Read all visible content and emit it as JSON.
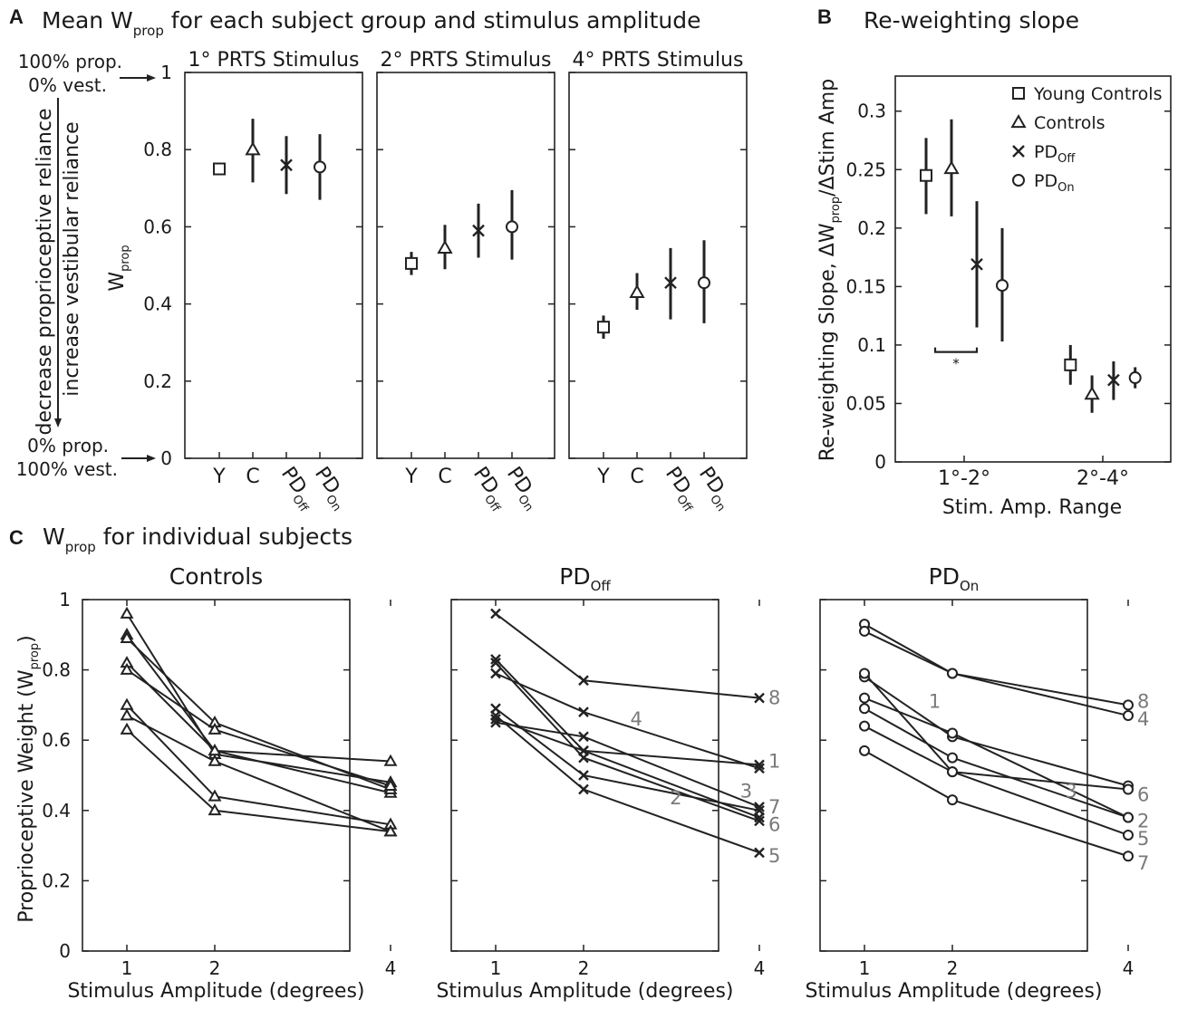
{
  "panelA": {
    "label": "A",
    "title_pre": "Mean W",
    "title_sub": "prop",
    "title_post": " for each subject group and stimulus amplitude",
    "ylabel_main": "W",
    "ylabel_sub": "prop",
    "side_label_1": "decrease proprioceptive reliance",
    "side_label_2": "increase vestibular reliance",
    "top_note_line1": "100% prop.",
    "top_note_line2": "0% vest.",
    "bottom_note_line1": "0% prop.",
    "bottom_note_line2": "100% vest.",
    "arrow_glyph": "→",
    "y_ticks": [
      "0",
      "0.2",
      "0.4",
      "0.6",
      "0.8",
      "1"
    ]
  },
  "panelB": {
    "label": "B",
    "title": "Re-weighting slope",
    "ylabel_parts": [
      "Re-weighting Slope, ΔW",
      "prop",
      "/ΔStim Amp"
    ],
    "xlabel": "Stim. Amp. Range",
    "y_ticks": [
      "0",
      "0.05",
      "0.1",
      "0.15",
      "0.2",
      "0.25",
      "0.3"
    ],
    "sig_mark": "*",
    "legend": [
      {
        "marker": "square",
        "main": "Young Controls",
        "sub": ""
      },
      {
        "marker": "triangle",
        "main": "Controls",
        "sub": ""
      },
      {
        "marker": "x",
        "main": "PD",
        "sub": "Off"
      },
      {
        "marker": "circle",
        "main": "PD",
        "sub": "On"
      }
    ]
  },
  "panelC": {
    "label": "C",
    "title_pre": "W",
    "title_sub": "prop",
    "title_post": " for individual subjects",
    "ylabel_pre": "Proprioceptive Weight (W",
    "ylabel_sub": "prop",
    "ylabel_post": ")",
    "xlabel": "Stimulus Amplitude (degrees)",
    "y_ticks": [
      "0",
      "0.2",
      "0.4",
      "0.6",
      "0.8",
      "1"
    ],
    "x_ticks": [
      "1",
      "2",
      "4"
    ]
  },
  "chart_data": [
    {
      "type": "scatter",
      "id": "A",
      "ylabel": "Wprop",
      "ylim": [
        0,
        1
      ],
      "groups": [
        {
          "main": "Y",
          "sub": ""
        },
        {
          "main": "C",
          "sub": ""
        },
        {
          "main": "PD",
          "sub": "Off"
        },
        {
          "main": "PD",
          "sub": "On"
        }
      ],
      "markers": [
        "square",
        "triangle",
        "x",
        "circle"
      ],
      "panels": [
        {
          "title": "1° PRTS Stimulus",
          "values": [
            0.75,
            0.8,
            0.76,
            0.755
          ],
          "ci_low": [
            0.75,
            0.715,
            0.685,
            0.67
          ],
          "ci_high": [
            0.75,
            0.88,
            0.835,
            0.84
          ]
        },
        {
          "title": "2° PRTS Stimulus",
          "values": [
            0.505,
            0.545,
            0.59,
            0.6
          ],
          "ci_low": [
            0.475,
            0.49,
            0.52,
            0.515
          ],
          "ci_high": [
            0.535,
            0.605,
            0.66,
            0.695
          ]
        },
        {
          "title": "4° PRTS Stimulus",
          "values": [
            0.34,
            0.43,
            0.455,
            0.455
          ],
          "ci_low": [
            0.31,
            0.385,
            0.36,
            0.35
          ],
          "ci_high": [
            0.37,
            0.48,
            0.545,
            0.565
          ]
        }
      ]
    },
    {
      "type": "scatter",
      "id": "B",
      "categories": [
        "1°-2°",
        "2°-4°"
      ],
      "ylim": [
        0,
        0.33
      ],
      "series": [
        {
          "name": "Young Controls",
          "marker": "square",
          "values": [
            0.245,
            0.083
          ],
          "ci_low": [
            0.212,
            0.066
          ],
          "ci_high": [
            0.277,
            0.1
          ]
        },
        {
          "name": "Controls",
          "marker": "triangle",
          "values": [
            0.251,
            0.058
          ],
          "ci_low": [
            0.21,
            0.042
          ],
          "ci_high": [
            0.293,
            0.074
          ]
        },
        {
          "name": "PDOff",
          "marker": "x",
          "values": [
            0.169,
            0.07
          ],
          "ci_low": [
            0.115,
            0.053
          ],
          "ci_high": [
            0.223,
            0.086
          ]
        },
        {
          "name": "PDOn",
          "marker": "circle",
          "values": [
            0.151,
            0.072
          ],
          "ci_low": [
            0.103,
            0.063
          ],
          "ci_high": [
            0.2,
            0.081
          ]
        }
      ],
      "significance": {
        "between": [
          "Young Controls",
          "PDOff"
        ],
        "range": "1°-2°",
        "mark": "*"
      }
    },
    {
      "type": "line",
      "id": "C",
      "x": [
        1,
        2,
        4
      ],
      "ylim": [
        0,
        1
      ],
      "xlabel": "Stimulus Amplitude (degrees)",
      "ylabel": "Proprioceptive Weight (Wprop)",
      "panels": [
        {
          "title_main": "Controls",
          "title_sub": "",
          "marker": "triangle",
          "subjects": [
            {
              "values": [
                0.96,
                0.56,
                0.48
              ]
            },
            {
              "values": [
                0.9,
                0.57,
                0.45
              ]
            },
            {
              "values": [
                0.89,
                0.65,
                0.46
              ]
            },
            {
              "values": [
                0.82,
                0.57,
                0.54
              ]
            },
            {
              "values": [
                0.8,
                0.63,
                0.47
              ]
            },
            {
              "values": [
                0.7,
                0.44,
                0.36
              ]
            },
            {
              "values": [
                0.67,
                0.54,
                0.34
              ]
            },
            {
              "values": [
                0.63,
                0.4,
                0.34
              ]
            }
          ]
        },
        {
          "title_main": "PD",
          "title_sub": "Off",
          "marker": "x",
          "subjects": [
            {
              "id": "8",
              "values": [
                0.96,
                0.77,
                0.72
              ]
            },
            {
              "id": "1",
              "values": [
                0.83,
                0.57,
                0.53
              ]
            },
            {
              "id": "4",
              "values": [
                0.79,
                0.68,
                0.52
              ]
            },
            {
              "id": "6",
              "values": [
                0.82,
                0.55,
                0.37
              ]
            },
            {
              "id": "3",
              "values": [
                0.69,
                0.5,
                0.4
              ]
            },
            {
              "id": "7",
              "values": [
                0.65,
                0.61,
                0.41
              ]
            },
            {
              "id": "2",
              "values": [
                0.66,
                0.57,
                0.38
              ]
            },
            {
              "id": "5",
              "values": [
                0.67,
                0.46,
                0.28
              ]
            }
          ],
          "labels": [
            {
              "text": "8",
              "x": 4,
              "y": 0.72,
              "side": "right"
            },
            {
              "text": "1",
              "x": 4,
              "y": 0.54,
              "side": "right"
            },
            {
              "text": "7",
              "x": 4,
              "y": 0.41,
              "side": "right"
            },
            {
              "text": "6",
              "x": 4,
              "y": 0.36,
              "side": "right"
            },
            {
              "text": "5",
              "x": 4,
              "y": 0.27,
              "side": "right"
            },
            {
              "text": "4",
              "x": 2.6,
              "y": 0.66,
              "side": "inline"
            },
            {
              "text": "3",
              "x": 3.85,
              "y": 0.455,
              "side": "inline"
            },
            {
              "text": "2",
              "x": 3.05,
              "y": 0.435,
              "side": "inline"
            }
          ]
        },
        {
          "title_main": "PD",
          "title_sub": "On",
          "marker": "circle",
          "subjects": [
            {
              "id": "8",
              "values": [
                0.93,
                0.79,
                0.7
              ]
            },
            {
              "id": "4",
              "values": [
                0.91,
                0.79,
                0.67
              ]
            },
            {
              "id": "1",
              "values": [
                0.78,
                0.61,
                0.47
              ]
            },
            {
              "id": "6",
              "values": [
                0.79,
                0.51,
                0.46
              ]
            },
            {
              "id": "3",
              "values": [
                0.72,
                0.62,
                0.38
              ]
            },
            {
              "id": "2",
              "values": [
                0.69,
                0.55,
                0.38
              ]
            },
            {
              "id": "5",
              "values": [
                0.64,
                0.51,
                0.33
              ]
            },
            {
              "id": "7",
              "values": [
                0.57,
                0.43,
                0.27
              ]
            }
          ],
          "labels": [
            {
              "text": "8",
              "x": 4,
              "y": 0.71,
              "side": "right"
            },
            {
              "text": "4",
              "x": 4,
              "y": 0.66,
              "side": "right"
            },
            {
              "text": "6",
              "x": 4,
              "y": 0.445,
              "side": "right"
            },
            {
              "text": "2",
              "x": 4,
              "y": 0.37,
              "side": "right"
            },
            {
              "text": "5",
              "x": 4,
              "y": 0.32,
              "side": "right"
            },
            {
              "text": "7",
              "x": 4,
              "y": 0.25,
              "side": "right"
            },
            {
              "text": "1",
              "x": 1.8,
              "y": 0.71,
              "side": "inline"
            },
            {
              "text": "3",
              "x": 3.35,
              "y": 0.455,
              "side": "inline"
            }
          ]
        }
      ]
    }
  ]
}
